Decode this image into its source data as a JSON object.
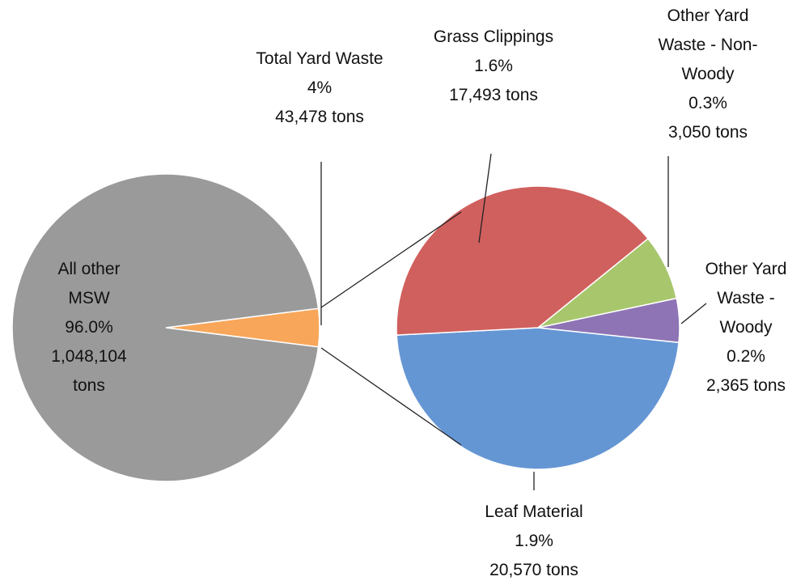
{
  "chart_data": [
    {
      "type": "pie",
      "categories": [
        "All other MSW",
        "Total Yard Waste"
      ],
      "values": [
        96.0,
        4
      ],
      "value_labels": [
        "96.0%",
        "4%"
      ],
      "tons": [
        "1,048,104 tons",
        "43,478 tons"
      ],
      "colors": [
        "#9a9a9a",
        "#f8a65a"
      ]
    },
    {
      "type": "pie",
      "categories": [
        "Grass Clippings",
        "Other Yard Waste - Non-Woody",
        "Other Yard Waste - Woody",
        "Leaf Material"
      ],
      "values": [
        1.6,
        0.3,
        0.2,
        1.9
      ],
      "value_labels": [
        "1.6%",
        "0.3%",
        "0.2%",
        "1.9%"
      ],
      "tons": [
        "17,493 tons",
        "3,050 tons",
        "2,365 tons",
        "20,570 tons"
      ],
      "colors": [
        "#d0605e",
        "#a8c66c",
        "#8e74b5",
        "#6596d4"
      ]
    }
  ]
}
